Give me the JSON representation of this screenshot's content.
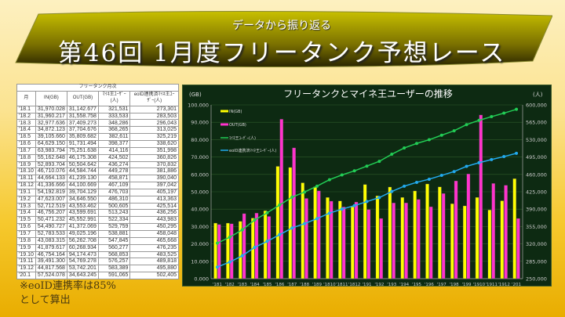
{
  "banner": {
    "subtitle": "データから振り返る",
    "title": "第46回 1月度フリータンク予想レース"
  },
  "table": {
    "caption": "フリータンク月次",
    "headers": [
      "月",
      "IN(GB)",
      "OUT(GB)",
      "ﾏｲﾈ王ﾕｰｻﾞｰ(人)",
      "eoID連携済ﾏｲﾈ王ﾕｰｻﾞｰ(人)"
    ],
    "rows": [
      [
        "'18.1",
        "31,970.028",
        "31,142.677",
        "321,531",
        "273,301"
      ],
      [
        "'18.2",
        "31,960.217",
        "31,558.758",
        "333,533",
        "283,503"
      ],
      [
        "'18.3",
        "32,977.636",
        "37,409.273",
        "348,286",
        "296,043"
      ],
      [
        "'18.4",
        "34,872.123",
        "37,704.676",
        "368,265",
        "313,025"
      ],
      [
        "'18.5",
        "39,105.660",
        "35,809.682",
        "382,611",
        "325,219"
      ],
      [
        "'18.6",
        "64,629.150",
        "91,731.494",
        "398,377",
        "338,620"
      ],
      [
        "'18.7",
        "63,983.794",
        "75,251.638",
        "414,116",
        "351,998"
      ],
      [
        "'18.8",
        "55,162.648",
        "46,175.308",
        "424,502",
        "360,826"
      ],
      [
        "'18.9",
        "52,893.704",
        "50,504.642",
        "436,274",
        "370,832"
      ],
      [
        "'18.10",
        "46,710.076",
        "44,584.744",
        "449,278",
        "381,886"
      ],
      [
        "'18.11",
        "44,664.133",
        "41,239.130",
        "458,871",
        "390,040"
      ],
      [
        "'18.12",
        "41,336.666",
        "44,100.669",
        "467,109",
        "397,042"
      ],
      [
        "'19.1",
        "54,192.819",
        "39,704.129",
        "476,703",
        "405,197"
      ],
      [
        "'19.2",
        "47,623.007",
        "34,646.550",
        "486,310",
        "413,363"
      ],
      [
        "'19.3",
        "52,712.519",
        "43,553.462",
        "500,605",
        "425,514"
      ],
      [
        "'19.4",
        "46,756.207",
        "43,599.691",
        "513,243",
        "436,256"
      ],
      [
        "'19.5",
        "50,471.232",
        "45,552.991",
        "522,334",
        "443,983"
      ],
      [
        "'19.6",
        "54,490.727",
        "41,372.069",
        "529,759",
        "450,295"
      ],
      [
        "'19.7",
        "52,783.533",
        "49,025.196",
        "538,881",
        "458,048"
      ],
      [
        "'19.8",
        "43,083.315",
        "56,262.708",
        "547,845",
        "465,668"
      ],
      [
        "'19.9",
        "41,879.617",
        "60,268.934",
        "560,277",
        "476,235"
      ],
      [
        "'19.10",
        "46,754.164",
        "94,174.473",
        "568,853",
        "483,525"
      ],
      [
        "'19.11",
        "39,491.300",
        "54,769.278",
        "576,257",
        "489,818"
      ],
      [
        "'19.12",
        "44,817.568",
        "53,742.201",
        "583,389",
        "495,880"
      ],
      [
        "'20.1",
        "57,524.078",
        "34,643.245",
        "591,065",
        "502,405"
      ]
    ]
  },
  "note": {
    "line1": "※eoID連携率は85%",
    "line2": "として算出"
  },
  "chart_data": {
    "type": "bar",
    "title": "フリータンクとマイネ王ユーザーの推移",
    "ylabel": "(GB)",
    "y2label": "(人)",
    "ylim": [
      0,
      100000
    ],
    "y2lim": [
      250000,
      600000
    ],
    "yticks": [
      "0.000",
      "10.000",
      "20.000",
      "30.000",
      "40.000",
      "50.000",
      "60.000",
      "70.000",
      "80.000",
      "90.000",
      "100.000"
    ],
    "y2ticks": [
      "250,000",
      "285,000",
      "320,000",
      "355,000",
      "390,000",
      "425,000",
      "460,000",
      "495,000",
      "530,000",
      "565,000",
      "600,000"
    ],
    "legend": "top-left",
    "grid": true,
    "categories": [
      "'18.1",
      "'18.2",
      "'18.3",
      "'18.4",
      "'18.5",
      "'18.6",
      "'18.7",
      "'18.8",
      "'18.9",
      "'18.10",
      "'18.11",
      "'18.12",
      "'19.1",
      "'19.2",
      "'19.3",
      "'19.4",
      "'19.5",
      "'19.6",
      "'19.7",
      "'19.8",
      "'19.9",
      "'19.10",
      "'19.11",
      "'19.12",
      "'20.1"
    ],
    "series": [
      {
        "name": "IN(GB)",
        "kind": "bar",
        "axis": "left",
        "color": "#ffff00",
        "values": [
          31970.028,
          31960.217,
          32977.636,
          34872.123,
          39105.66,
          64629.15,
          63983.794,
          55162.648,
          52893.704,
          46710.076,
          44664.133,
          41336.666,
          54192.819,
          47623.007,
          52712.519,
          46756.207,
          50471.232,
          54490.727,
          52783.533,
          43083.315,
          41879.617,
          46754.164,
          39491.3,
          44817.568,
          57524.078
        ]
      },
      {
        "name": "OUT(GB)",
        "kind": "bar",
        "axis": "left",
        "color": "#ff33cc",
        "values": [
          31142.677,
          31558.758,
          37409.273,
          37704.676,
          35809.682,
          91731.494,
          75251.638,
          46175.308,
          50504.642,
          44584.744,
          41239.13,
          44100.669,
          39704.129,
          34646.55,
          43553.462,
          43599.691,
          45552.991,
          41372.069,
          49025.196,
          56262.708,
          60268.934,
          94174.473,
          54769.278,
          53742.201,
          34643.245
        ]
      },
      {
        "name": "ﾏｲﾈ王ﾕｰｻﾞｰ(人)",
        "kind": "line",
        "axis": "right",
        "color": "#22cc55",
        "values": [
          321531,
          333533,
          348286,
          368265,
          382611,
          398377,
          414116,
          424502,
          436274,
          449278,
          458871,
          467109,
          476703,
          486310,
          500605,
          513243,
          522334,
          529759,
          538881,
          547845,
          560277,
          568853,
          576257,
          583389,
          591065
        ]
      },
      {
        "name": "eoID連携済ﾏｲﾈ王ﾕｰｻﾞｰ(人)",
        "kind": "line",
        "axis": "right",
        "color": "#22aaee",
        "values": [
          273301,
          283503,
          296043,
          313025,
          325219,
          338620,
          351998,
          360826,
          370832,
          381886,
          390040,
          397042,
          405197,
          413363,
          425514,
          436256,
          443983,
          450295,
          458048,
          465668,
          476235,
          483525,
          489818,
          495880,
          502405
        ]
      }
    ]
  }
}
